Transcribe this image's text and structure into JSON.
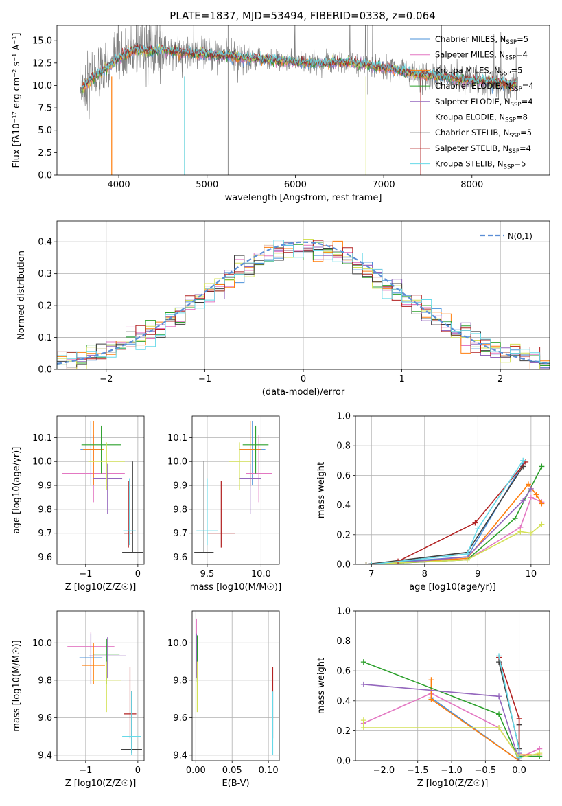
{
  "figure_title": "PLATE=1837, MJD=53494, FIBERID=0338, z=0.064",
  "colors": {
    "Chabrier MILES": "#4a90d9",
    "Salpeter MILES": "#e377c2",
    "Kroupa MILES": "#ff7f0e",
    "Chabrier ELODIE": "#2ca02c",
    "Salpeter ELODIE": "#9467bd",
    "Kroupa ELODIE": "#d4e157",
    "Chabrier STELIB": "#404040",
    "Salpeter STELIB": "#b22222",
    "Kroupa STELIB": "#66d9e8",
    "data_grey": "#808080",
    "cyan_model": "#5fd0da",
    "gauss": "#5b8ed6"
  },
  "chart_data": [
    {
      "type": "line",
      "panel": "spectrum",
      "xlabel": "wavelength [Angstrom, rest frame]",
      "ylabel": "Flux [fλ10⁻¹⁷ erg cm⁻² s⁻¹ A⁻¹]",
      "xlim": [
        3300,
        8880
      ],
      "ylim": [
        0,
        16.7
      ],
      "xticks": [
        "4000",
        "5000",
        "6000",
        "7000",
        "8000"
      ],
      "yticks": [
        "0.0",
        "2.5",
        "5.0",
        "7.5",
        "10.0",
        "12.5",
        "15.0"
      ],
      "continuum": {
        "x": [
          3600,
          3700,
          3800,
          3900,
          4000,
          4100,
          4200,
          4300,
          4400,
          4500,
          4600,
          4800,
          5000,
          5200,
          5500,
          5800,
          6000,
          6300,
          6600,
          6800,
          7000,
          7200,
          7400,
          7600,
          7800,
          8000,
          8200,
          8400,
          8500
        ],
        "y": [
          9.8,
          10.8,
          11.5,
          12.2,
          13.0,
          13.6,
          14.0,
          13.8,
          13.9,
          14.0,
          13.8,
          13.6,
          13.5,
          13.3,
          13.0,
          12.8,
          12.6,
          12.5,
          12.6,
          12.3,
          12.0,
          11.6,
          11.2,
          11.0,
          10.8,
          10.6,
          10.4,
          10.2,
          10.1
        ]
      },
      "legend": [
        {
          "label": "Chabrier MILES, N",
          "sub": "SSP",
          "tail": "=5"
        },
        {
          "label": "Salpeter MILES, N",
          "sub": "SSP",
          "tail": "=4"
        },
        {
          "label": "Kroupa MILES, N",
          "sub": "SSP",
          "tail": "=5"
        },
        {
          "label": "Chabrier ELODIE, N",
          "sub": "SSP",
          "tail": "=4"
        },
        {
          "label": "Salpeter ELODIE, N",
          "sub": "SSP",
          "tail": "=4"
        },
        {
          "label": "Kroupa ELODIE, N",
          "sub": "SSP",
          "tail": "=8"
        },
        {
          "label": "Chabrier STELIB, N",
          "sub": "SSP",
          "tail": "=5"
        },
        {
          "label": "Salpeter STELIB, N",
          "sub": "SSP",
          "tail": "=4"
        },
        {
          "label": "Kroupa STELIB, N",
          "sub": "SSP",
          "tail": "=5"
        }
      ]
    },
    {
      "type": "line",
      "panel": "residual_histogram",
      "xlabel": "(data-model)/error",
      "ylabel": "Normed distribution",
      "xlim": [
        -2.5,
        2.5
      ],
      "ylim": [
        0,
        0.465
      ],
      "xticks": [
        "−2",
        "−1",
        "0",
        "1",
        "2"
      ],
      "yticks": [
        "0.0",
        "0.1",
        "0.2",
        "0.3",
        "0.4"
      ],
      "legend": "N(0,1)",
      "bins": 50
    },
    {
      "type": "scatter",
      "panel": "age_vs_Z",
      "xlabel": "Z [log10(Z/Z☉)]",
      "ylabel": "age  [log10(age/yr)]",
      "xlim": [
        -1.55,
        0.12
      ],
      "ylim": [
        9.57,
        10.19
      ],
      "xticks": [
        "−1",
        "0"
      ],
      "yticks": [
        "9.6",
        "9.7",
        "9.8",
        "9.9",
        "10.0",
        "10.1"
      ],
      "points": [
        {
          "model": "Chabrier MILES",
          "x": -0.9,
          "y": 10.05,
          "xerr": 0.2,
          "yerr": [
            0.15,
            0.12
          ]
        },
        {
          "model": "Salpeter MILES",
          "x": -0.85,
          "y": 9.95,
          "xerr": 0.6,
          "yerr": [
            0.12,
            0.16
          ]
        },
        {
          "model": "Kroupa MILES",
          "x": -0.85,
          "y": 10.05,
          "xerr": 0.2,
          "yerr": [
            0.15,
            0.12
          ]
        },
        {
          "model": "Chabrier ELODIE",
          "x": -0.7,
          "y": 10.07,
          "xerr": 0.38,
          "yerr": [
            0.12,
            0.08
          ]
        },
        {
          "model": "Salpeter ELODIE",
          "x": -0.58,
          "y": 9.93,
          "xerr": 0.28,
          "yerr": [
            0.15,
            0.06
          ]
        },
        {
          "model": "Kroupa ELODIE",
          "x": -0.6,
          "y": 10.0,
          "xerr": 0.35,
          "yerr": [
            0.12,
            0.08
          ]
        },
        {
          "model": "Chabrier STELIB",
          "x": -0.1,
          "y": 9.62,
          "xerr": 0.2,
          "yerr": [
            0.0,
            0.38
          ]
        },
        {
          "model": "Salpeter STELIB",
          "x": -0.18,
          "y": 9.7,
          "xerr": 0.08,
          "yerr": [
            0.06,
            0.22
          ]
        },
        {
          "model": "Kroupa STELIB",
          "x": -0.16,
          "y": 9.71,
          "xerr": 0.12,
          "yerr": [
            0.06,
            0.22
          ]
        }
      ]
    },
    {
      "type": "scatter",
      "panel": "age_vs_mass",
      "xlabel": "mass [log10(M/M☉)]",
      "xlim": [
        9.36,
        10.17
      ],
      "ylim": [
        9.57,
        10.19
      ],
      "xticks": [
        "9.5",
        "10.0"
      ],
      "yticks": [
        "9.6",
        "9.7",
        "9.8",
        "9.9",
        "10.0",
        "10.1"
      ],
      "points": [
        {
          "model": "Chabrier MILES",
          "x": 9.92,
          "y": 10.05,
          "xerr": 0.12,
          "yerr": [
            0.15,
            0.12
          ]
        },
        {
          "model": "Salpeter MILES",
          "x": 9.98,
          "y": 9.95,
          "xerr": 0.12,
          "yerr": [
            0.12,
            0.16
          ]
        },
        {
          "model": "Kroupa MILES",
          "x": 9.9,
          "y": 10.05,
          "xerr": 0.1,
          "yerr": [
            0.15,
            0.12
          ]
        },
        {
          "model": "Chabrier ELODIE",
          "x": 9.95,
          "y": 10.07,
          "xerr": 0.12,
          "yerr": [
            0.12,
            0.08
          ]
        },
        {
          "model": "Salpeter ELODIE",
          "x": 9.9,
          "y": 9.93,
          "xerr": 0.1,
          "yerr": [
            0.15,
            0.06
          ]
        },
        {
          "model": "Kroupa ELODIE",
          "x": 9.8,
          "y": 10.0,
          "xerr": 0.1,
          "yerr": [
            0.12,
            0.08
          ]
        },
        {
          "model": "Chabrier STELIB",
          "x": 9.47,
          "y": 9.62,
          "xerr": 0.09,
          "yerr": [
            0.0,
            0.38
          ]
        },
        {
          "model": "Salpeter STELIB",
          "x": 9.63,
          "y": 9.7,
          "xerr": 0.13,
          "yerr": [
            0.06,
            0.22
          ]
        },
        {
          "model": "Kroupa STELIB",
          "x": 9.5,
          "y": 9.71,
          "xerr": 0.1,
          "yerr": [
            0.06,
            0.22
          ]
        }
      ]
    },
    {
      "type": "line",
      "panel": "weight_vs_age",
      "xlabel": "age  [log10(age/yr)]",
      "ylabel": "mass weight",
      "xlim": [
        6.7,
        10.35
      ],
      "ylim": [
        0,
        1.0
      ],
      "xticks": [
        "7",
        "8",
        "9",
        "10"
      ],
      "yticks": [
        "0.0",
        "0.2",
        "0.4",
        "0.6",
        "0.8",
        "1.0"
      ],
      "series": [
        {
          "model": "Chabrier MILES",
          "x": [
            6.9,
            7.6,
            8.8,
            9.85
          ],
          "y": [
            0.0,
            0.02,
            0.05,
            0.68
          ]
        },
        {
          "model": "Salpeter MILES",
          "x": [
            7.0,
            8.8,
            9.8,
            10.0,
            10.2
          ],
          "y": [
            0.0,
            0.03,
            0.25,
            0.45,
            0.42
          ]
        },
        {
          "model": "Kroupa MILES",
          "x": [
            6.9,
            8.8,
            9.95,
            10.1,
            10.2
          ],
          "y": [
            0.0,
            0.04,
            0.54,
            0.47,
            0.41
          ]
        },
        {
          "model": "Chabrier ELODIE",
          "x": [
            7.0,
            8.8,
            9.7,
            10.2
          ],
          "y": [
            0.0,
            0.03,
            0.31,
            0.66
          ]
        },
        {
          "model": "Salpeter ELODIE",
          "x": [
            7.5,
            8.8,
            9.85,
            10.0
          ],
          "y": [
            0.01,
            0.05,
            0.43,
            0.51
          ]
        },
        {
          "model": "Kroupa ELODIE",
          "x": [
            6.9,
            8.8,
            9.8,
            10.0,
            10.2
          ],
          "y": [
            0.0,
            0.03,
            0.22,
            0.21,
            0.27
          ]
        },
        {
          "model": "Chabrier STELIB",
          "x": [
            6.9,
            8.8,
            9.85
          ],
          "y": [
            0.0,
            0.08,
            0.66
          ]
        },
        {
          "model": "Salpeter STELIB",
          "x": [
            7.5,
            8.95,
            9.9
          ],
          "y": [
            0.02,
            0.28,
            0.69
          ]
        },
        {
          "model": "Kroupa STELIB",
          "x": [
            7.0,
            8.8,
            9.0,
            9.85
          ],
          "y": [
            0.0,
            0.07,
            0.24,
            0.7
          ]
        }
      ]
    },
    {
      "type": "scatter",
      "panel": "mass_vs_Z",
      "xlabel": "Z [log10(Z/Z☉)]",
      "ylabel": "mass [log10(M/M☉)]",
      "xlim": [
        -1.55,
        0.12
      ],
      "ylim": [
        9.37,
        10.17
      ],
      "xticks": [
        "−1",
        "0"
      ],
      "yticks": [
        "9.4",
        "9.6",
        "9.8",
        "10.0"
      ],
      "points": [
        {
          "model": "Chabrier MILES",
          "x": -0.9,
          "y": 9.92,
          "xerr": 0.22,
          "yerr": [
            0.14,
            0.13
          ]
        },
        {
          "model": "Salpeter MILES",
          "x": -0.9,
          "y": 9.98,
          "xerr": 0.45,
          "yerr": [
            0.2,
            0.08
          ]
        },
        {
          "model": "Kroupa MILES",
          "x": -0.85,
          "y": 9.88,
          "xerr": 0.22,
          "yerr": [
            0.1,
            0.12
          ]
        },
        {
          "model": "Chabrier ELODIE",
          "x": -0.6,
          "y": 9.94,
          "xerr": 0.25,
          "yerr": [
            0.16,
            0.08
          ]
        },
        {
          "model": "Salpeter ELODIE",
          "x": -0.58,
          "y": 9.93,
          "xerr": 0.35,
          "yerr": [
            0.12,
            0.1
          ]
        },
        {
          "model": "Kroupa ELODIE",
          "x": -0.6,
          "y": 9.8,
          "xerr": 0.28,
          "yerr": [
            0.17,
            0.1
          ]
        },
        {
          "model": "Chabrier STELIB",
          "x": -0.12,
          "y": 9.43,
          "xerr": 0.2,
          "yerr": [
            0.02,
            0.31
          ]
        },
        {
          "model": "Salpeter STELIB",
          "x": -0.15,
          "y": 9.62,
          "xerr": 0.12,
          "yerr": [
            0.13,
            0.25
          ]
        },
        {
          "model": "Kroupa STELIB",
          "x": -0.12,
          "y": 9.5,
          "xerr": 0.18,
          "yerr": [
            0.1,
            0.24
          ]
        }
      ]
    },
    {
      "type": "scatter",
      "panel": "mass_vs_EBV",
      "xlabel": "E(B-V)",
      "xlim": [
        -0.005,
        0.115
      ],
      "ylim": [
        9.37,
        10.17
      ],
      "xticks": [
        "0.00",
        "0.05",
        "0.10"
      ],
      "yticks": [
        "9.4",
        "9.6",
        "9.8",
        "10.0"
      ],
      "points": [
        {
          "model": "Salpeter MILES",
          "x": 0.001,
          "y": 9.98,
          "yerr": [
            0.15,
            0.15
          ]
        },
        {
          "model": "Chabrier ELODIE",
          "x": 0.002,
          "y": 9.94,
          "yerr": [
            0.15,
            0.1
          ]
        },
        {
          "model": "Salpeter ELODIE",
          "x": 0.001,
          "y": 9.93,
          "yerr": [
            0.12,
            0.12
          ]
        },
        {
          "model": "Kroupa ELODIE",
          "x": 0.002,
          "y": 9.8,
          "yerr": [
            0.17,
            0.1
          ]
        },
        {
          "model": "Salpeter STELIB",
          "x": 0.106,
          "y": 9.62,
          "yerr": [
            0.13,
            0.25
          ]
        },
        {
          "model": "Kroupa STELIB",
          "x": 0.106,
          "y": 9.5,
          "yerr": [
            0.1,
            0.24
          ]
        }
      ]
    },
    {
      "type": "line",
      "panel": "weight_vs_Z",
      "xlabel": "Z [log10(Z/Z☉)]",
      "ylabel": "mass weight",
      "xlim": [
        -2.42,
        0.45
      ],
      "ylim": [
        0,
        1.0
      ],
      "xticks": [
        "−2.0",
        "−1.5",
        "−1.0",
        "−0.5",
        "0.0"
      ],
      "yticks": [
        "0.0",
        "0.2",
        "0.4",
        "0.6",
        "0.8",
        "1.0"
      ],
      "series": [
        {
          "model": "Chabrier MILES",
          "x": [
            -1.3,
            0.0,
            0.0
          ],
          "y": [
            0.42,
            0.0,
            0.04
          ]
        },
        {
          "model": "Salpeter MILES",
          "x": [
            -2.3,
            -1.3,
            -0.3,
            0.0,
            0.3
          ],
          "y": [
            0.25,
            0.45,
            0.22,
            0.02,
            0.08
          ]
        },
        {
          "model": "Kroupa MILES",
          "x": [
            -1.3,
            -1.3,
            0.0,
            0.0,
            0.3
          ],
          "y": [
            0.54,
            0.41,
            0.0,
            0.04,
            0.04
          ]
        },
        {
          "model": "Chabrier ELODIE",
          "x": [
            -2.3,
            -0.3,
            0.0,
            0.0,
            0.3
          ],
          "y": [
            0.66,
            0.31,
            0.0,
            0.03,
            0.03
          ]
        },
        {
          "model": "Salpeter ELODIE",
          "x": [
            -2.3,
            -0.3,
            0.0,
            0.0
          ],
          "y": [
            0.51,
            0.43,
            0.0,
            0.05
          ]
        },
        {
          "model": "Kroupa ELODIE",
          "x": [
            -2.3,
            -2.3,
            -0.3,
            0.0,
            0.3
          ],
          "y": [
            0.27,
            0.22,
            0.22,
            0.02,
            0.05
          ]
        },
        {
          "model": "Chabrier STELIB",
          "x": [
            -0.3,
            0.0,
            0.0
          ],
          "y": [
            0.66,
            0.08,
            0.24
          ]
        },
        {
          "model": "Salpeter STELIB",
          "x": [
            -0.3,
            0.0,
            0.0
          ],
          "y": [
            0.69,
            0.28,
            0.02
          ]
        },
        {
          "model": "Kroupa STELIB",
          "x": [
            -0.3,
            0.0,
            0.0
          ],
          "y": [
            0.7,
            0.07,
            0.02
          ]
        }
      ]
    }
  ]
}
